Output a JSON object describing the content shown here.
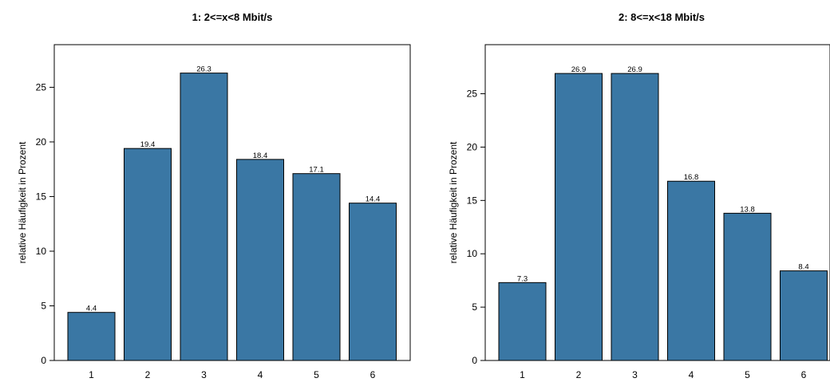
{
  "chart_data": [
    {
      "type": "bar",
      "title": "1: 2<=x<8 Mbit/s",
      "ylabel": "relative Häufigkeit in Prozent",
      "xlabel": "",
      "categories": [
        "1",
        "2",
        "3",
        "4",
        "5",
        "6"
      ],
      "values": [
        4.4,
        19.4,
        26.3,
        18.4,
        17.1,
        14.4
      ],
      "value_labels": [
        "4.4",
        "19.4",
        "26.3",
        "18.4",
        "17.1",
        "14.4"
      ],
      "yticks": [
        0,
        5,
        10,
        15,
        20,
        25
      ],
      "ylim": [
        0,
        28.9
      ],
      "bar_color": "#3a77a4",
      "grid": false
    },
    {
      "type": "bar",
      "title": "2: 8<=x<18 Mbit/s",
      "ylabel": "relative Häufigkeit in Prozent",
      "xlabel": "",
      "categories": [
        "1",
        "2",
        "3",
        "4",
        "5",
        "6"
      ],
      "values": [
        7.3,
        26.9,
        26.9,
        16.8,
        13.8,
        8.4
      ],
      "value_labels": [
        "7.3",
        "26.9",
        "26.9",
        "16.8",
        "13.8",
        "8.4"
      ],
      "yticks": [
        0,
        5,
        10,
        15,
        20,
        25
      ],
      "ylim": [
        0,
        29.6
      ],
      "bar_color": "#3a77a4",
      "grid": false
    }
  ]
}
